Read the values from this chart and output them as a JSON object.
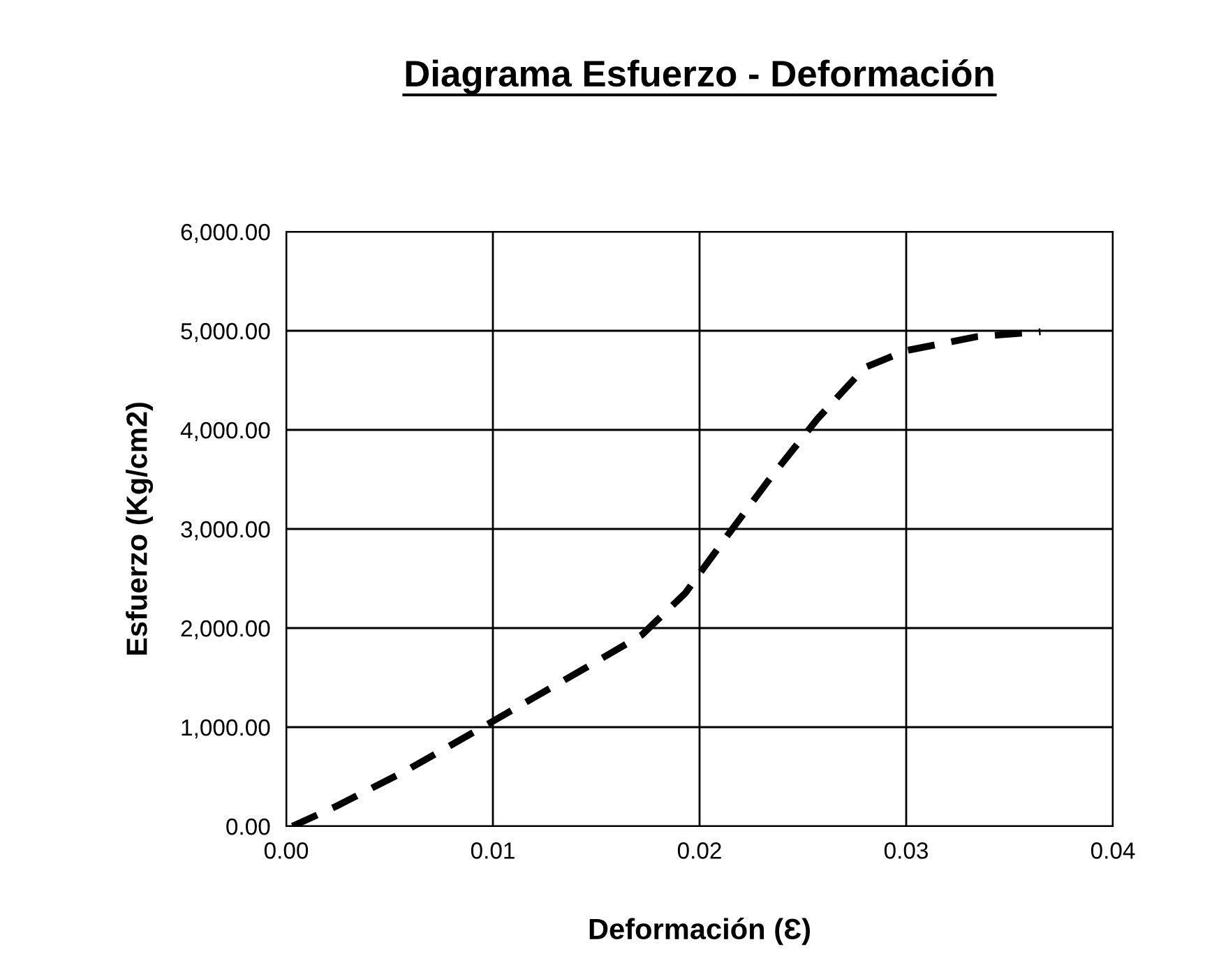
{
  "chart_data": {
    "type": "line",
    "title": "Diagrama Esfuerzo - Deformación",
    "xlabel": "Deformación (Ɛ)",
    "ylabel": "Esfuerzo (Kg/cm2)",
    "xlim": [
      0,
      0.04
    ],
    "ylim": [
      0,
      6000
    ],
    "xticks": [
      {
        "value": 0,
        "label": "0.00"
      },
      {
        "value": 0.01,
        "label": "0.01"
      },
      {
        "value": 0.02,
        "label": "0.02"
      },
      {
        "value": 0.03,
        "label": "0.03"
      },
      {
        "value": 0.04,
        "label": "0.04"
      }
    ],
    "yticks": [
      {
        "value": 0,
        "label": "0.00"
      },
      {
        "value": 1000,
        "label": "1,000.00"
      },
      {
        "value": 2000,
        "label": "2,000.00"
      },
      {
        "value": 3000,
        "label": "3,000.00"
      },
      {
        "value": 4000,
        "label": "4,000.00"
      },
      {
        "value": 5000,
        "label": "5,000.00"
      },
      {
        "value": 6000,
        "label": "6,000.00"
      }
    ],
    "grid": true,
    "line_style": "dashed",
    "marker": "none",
    "series": [
      {
        "color": "#000000",
        "x": [
          0.0003,
          0.0024,
          0.0057,
          0.0095,
          0.0145,
          0.0172,
          0.0193,
          0.0213,
          0.0233,
          0.0257,
          0.028,
          0.03,
          0.0334,
          0.0365
        ],
        "values": [
          0,
          200,
          550,
          1000,
          1600,
          1930,
          2350,
          2920,
          3480,
          4110,
          4630,
          4800,
          4940,
          4990
        ]
      }
    ]
  }
}
